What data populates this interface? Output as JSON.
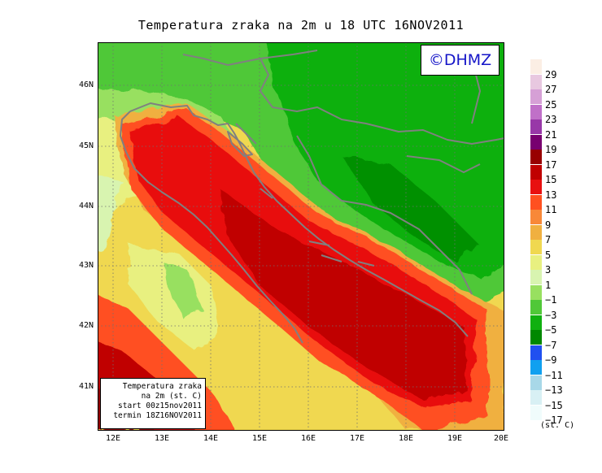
{
  "title": "Temperatura zraka na 2m u 18 UTC 16NOV2011",
  "logo": "©DHMZ",
  "info_box": {
    "line1": "Temperatura zraka",
    "line2": "na 2m (st. C)",
    "line3": "start 00z15nov2011",
    "line4": "termin 18Z16NOV2011"
  },
  "lat_labels": [
    "46N",
    "45N",
    "44N",
    "43N",
    "42N",
    "41N"
  ],
  "lon_labels": [
    "12E",
    "13E",
    "14E",
    "15E",
    "16E",
    "17E",
    "18E",
    "19E",
    "20E"
  ],
  "legend": {
    "unit": "(st. C)",
    "levels": [
      "29",
      "27",
      "25",
      "23",
      "21",
      "19",
      "17",
      "15",
      "13",
      "11",
      "9",
      "7",
      "5",
      "3",
      "1",
      "−1",
      "−3",
      "−5",
      "−7",
      "−9",
      "−11",
      "−13",
      "−15",
      "−17"
    ],
    "colors": [
      "#fbeee4",
      "#e8c8e0",
      "#d6a0d6",
      "#c070c8",
      "#9838a8",
      "#780070",
      "#980000",
      "#c00000",
      "#e81010",
      "#ff5020",
      "#f88838",
      "#f0b040",
      "#f0d850",
      "#e8f080",
      "#d8f4b0",
      "#98e060",
      "#50c838",
      "#10b010",
      "#008800",
      "#2050f0",
      "#10a0f0",
      "#a8d8e8",
      "#d8f0f4",
      "#f0fcfc"
    ]
  },
  "colors": {
    "coastline": "#808080",
    "gridline": "#707070",
    "logo_text": "#1515c8"
  }
}
